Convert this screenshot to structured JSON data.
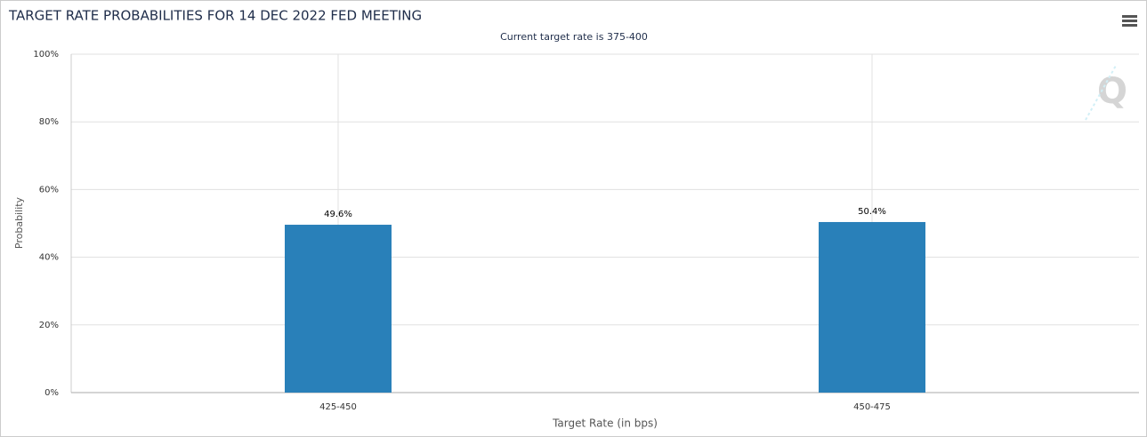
{
  "chart_data": {
    "type": "bar",
    "title": "TARGET RATE PROBABILITIES FOR 14 DEC 2022 FED MEETING",
    "subtitle": "Current target rate is 375-400",
    "x_label": "Target Rate (in bps)",
    "y_label": "Probability",
    "categories": [
      "425-450",
      "450-475"
    ],
    "values": [
      49.6,
      50.4
    ],
    "value_labels": [
      "49.6%",
      "50.4%"
    ],
    "color": "#2980b9",
    "ylim": [
      0,
      100
    ],
    "yticks": [
      {
        "value": 0,
        "label": "0%"
      },
      {
        "value": 20,
        "label": "20%"
      },
      {
        "value": 40,
        "label": "40%"
      },
      {
        "value": 60,
        "label": "60%"
      },
      {
        "value": 80,
        "label": "80%"
      },
      {
        "value": 100,
        "label": "100%"
      }
    ],
    "grid": true
  }
}
